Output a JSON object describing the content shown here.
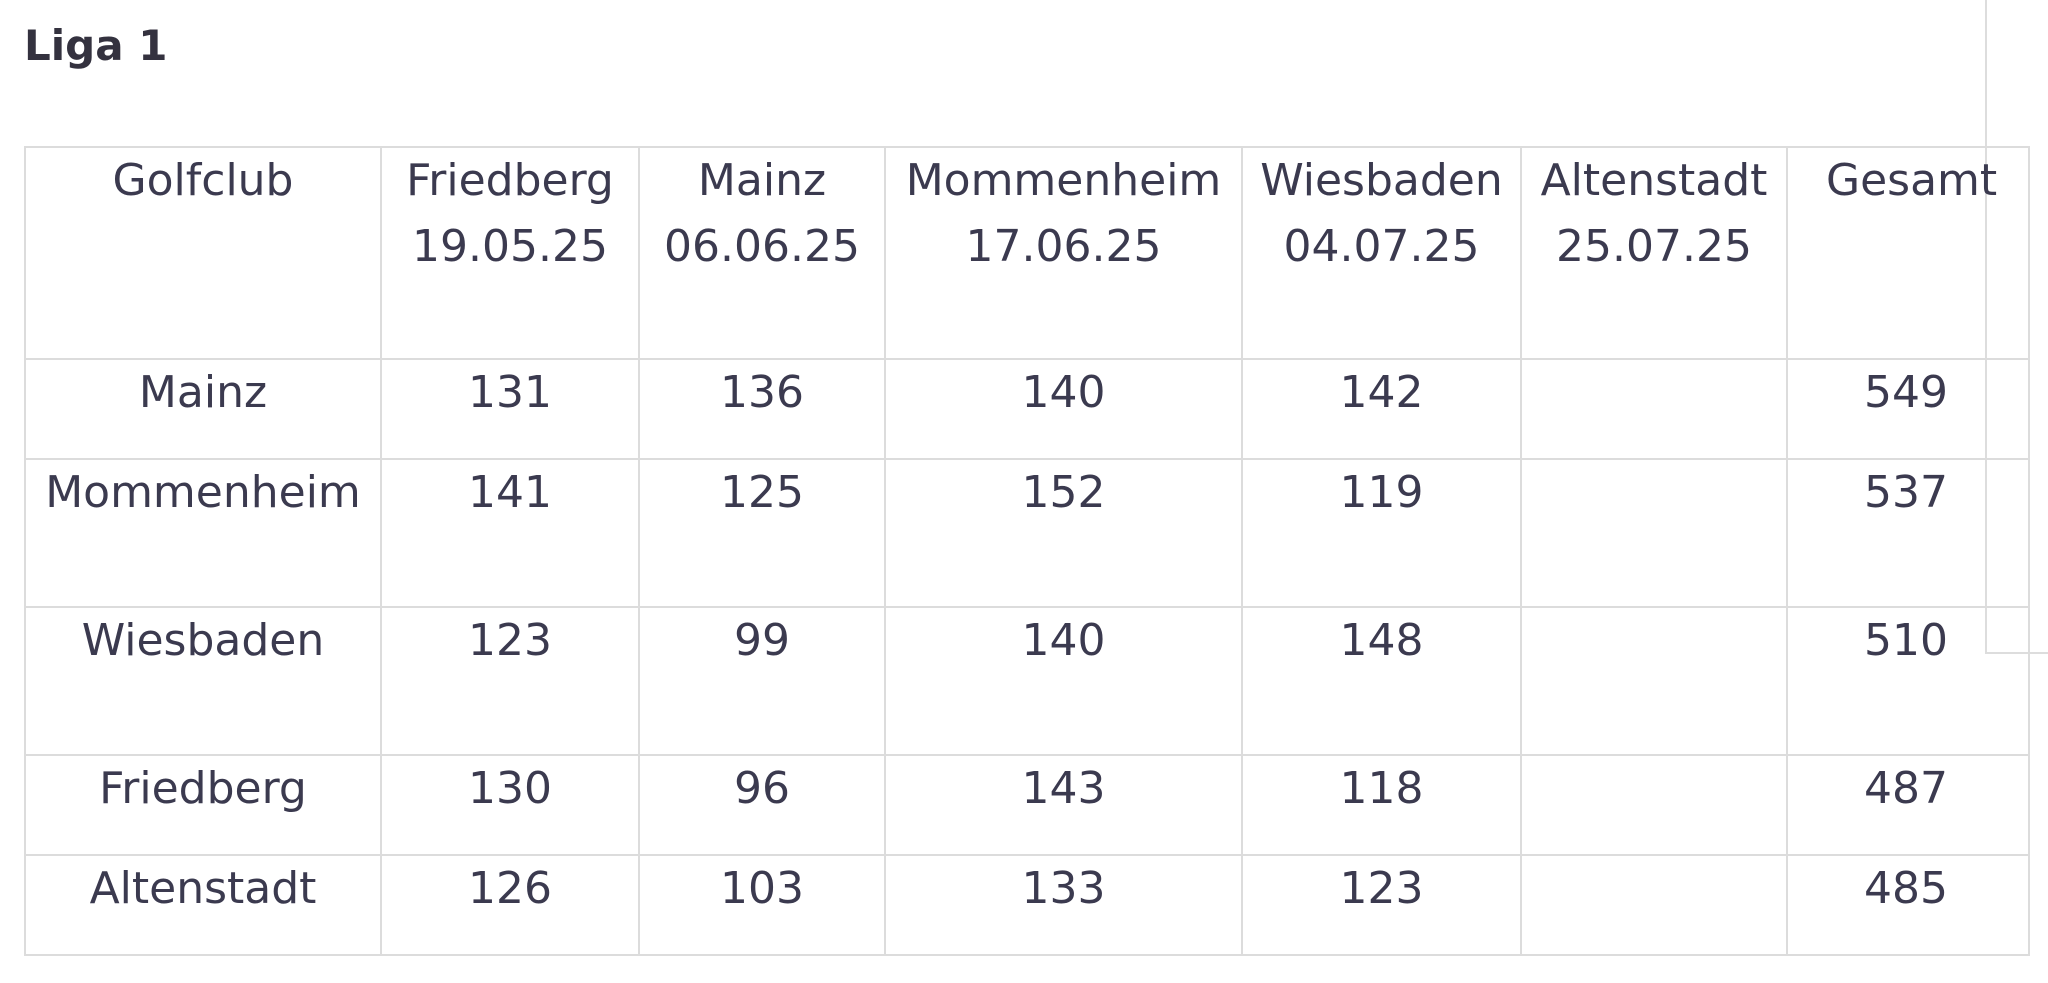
{
  "title": "Liga 1",
  "table": {
    "headers": [
      {
        "name": "Golfclub",
        "date": ""
      },
      {
        "name": "Friedberg",
        "date": "19.05.25"
      },
      {
        "name": "Mainz",
        "date": "06.06.25"
      },
      {
        "name": "Mommenheim",
        "date": "17.06.25"
      },
      {
        "name": "Wiesbaden",
        "date": "04.07.25"
      },
      {
        "name": "Altenstadt",
        "date": "25.07.25"
      },
      {
        "name": "Gesamt",
        "date": ""
      }
    ],
    "rows": [
      {
        "club": "Mainz",
        "scores": [
          "131",
          "136",
          "140",
          "142",
          ""
        ],
        "total": "549"
      },
      {
        "club": "Mommenheim",
        "scores": [
          "141",
          "125",
          "152",
          "119",
          ""
        ],
        "total": "537"
      },
      {
        "club": "Wiesbaden",
        "scores": [
          "123",
          "99",
          "140",
          "148",
          ""
        ],
        "total": "510"
      },
      {
        "club": "Friedberg",
        "scores": [
          "130",
          "96",
          "143",
          "118",
          ""
        ],
        "total": "487"
      },
      {
        "club": "Altenstadt",
        "scores": [
          "126",
          "103",
          "133",
          "123",
          ""
        ],
        "total": "485"
      }
    ]
  }
}
